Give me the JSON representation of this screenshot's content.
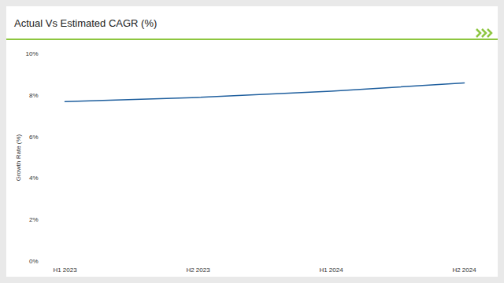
{
  "chart_data": {
    "type": "line",
    "title": "Actual Vs Estimated CAGR (%)",
    "y_label": "Growth Rate (%)",
    "categories": [
      "H1 2023",
      "H2 2023",
      "H1 2024",
      "H2 2024"
    ],
    "values": [
      7.7,
      7.9,
      8.2,
      8.6
    ],
    "color": "#1f5f9e",
    "ylim": [
      0,
      10
    ],
    "yticks": [
      {
        "value": 0,
        "label": "0%"
      },
      {
        "value": 2,
        "label": "2%"
      },
      {
        "value": 4,
        "label": "4%"
      },
      {
        "value": 6,
        "label": "6%"
      },
      {
        "value": 8,
        "label": "8%"
      },
      {
        "value": 10,
        "label": "10%"
      }
    ],
    "grid": false
  }
}
